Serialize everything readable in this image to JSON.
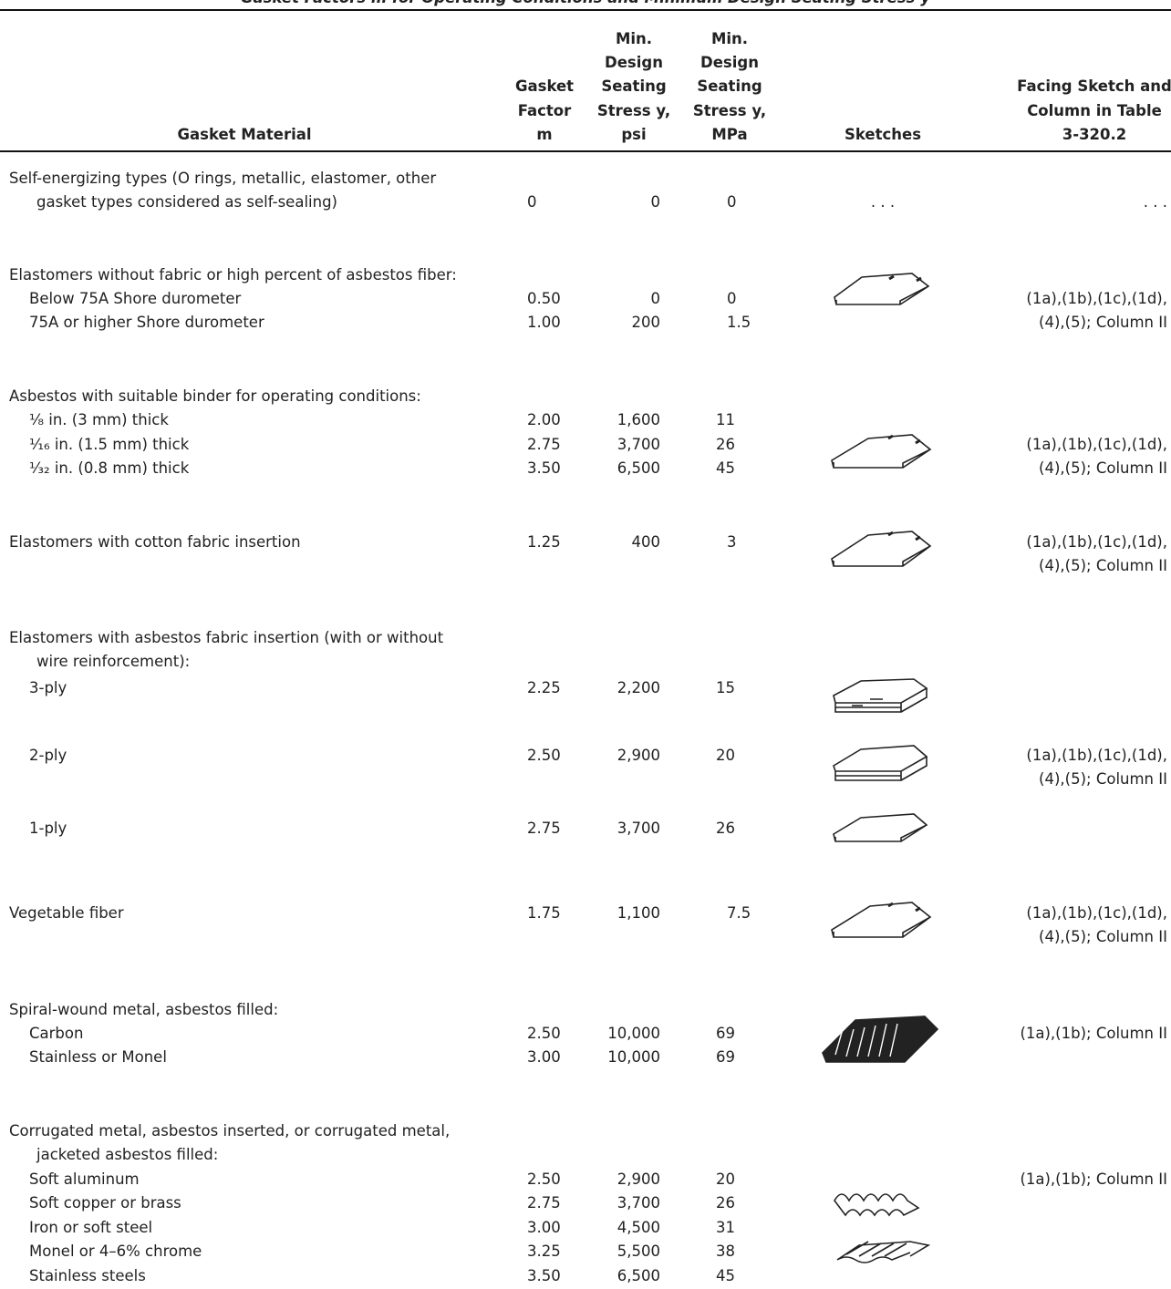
{
  "title": "Gasket Factors m for Operating Conditions and Minimum Design Seating Stress y",
  "header": {
    "material": [
      "Gasket Material"
    ],
    "m": [
      "Gasket",
      "Factor",
      "m"
    ],
    "psi": [
      "Min.",
      "Design",
      "Seating",
      "Stress y,",
      "psi"
    ],
    "mpa": [
      "Min.",
      "Design",
      "Seating",
      "Stress y,",
      "MPa"
    ],
    "sketches": [
      "Sketches"
    ],
    "facing": [
      "Facing Sketch and",
      "Column in Table",
      "3-320.2"
    ]
  },
  "groups": [
    {
      "heading": [
        "Self-energizing types (O rings, metallic, elastomer, other",
        "gasket types considered as self-sealing)"
      ],
      "rows": [
        {
          "m": "0",
          "psi": "0",
          "mpa": "0"
        }
      ],
      "sketches": ". . .",
      "facing": [
        ". . ."
      ]
    },
    {
      "heading": [
        "Elastomers without fabric or high percent of asbestos fiber:"
      ],
      "rows": [
        {
          "material": "Below 75A Shore durometer",
          "m": "0.50",
          "psi": "0",
          "mpa": "0"
        },
        {
          "material": "75A or higher Shore durometer",
          "m": "1.00",
          "psi": "200",
          "mpa": "1.5"
        }
      ],
      "facing": [
        "(1a),(1b),(1c),(1d),",
        "(4),(5); Column II"
      ]
    },
    {
      "heading": [
        "Asbestos with suitable binder for operating conditions:"
      ],
      "rows": [
        {
          "material": "¹⁄₈ in. (3 mm) thick",
          "m": "2.00",
          "psi": "1,600",
          "mpa": "11"
        },
        {
          "material": "¹⁄₁₆ in. (1.5 mm) thick",
          "m": "2.75",
          "psi": "3,700",
          "mpa": "26"
        },
        {
          "material": "¹⁄₃₂ in. (0.8 mm) thick",
          "m": "3.50",
          "psi": "6,500",
          "mpa": "45"
        }
      ],
      "facing": [
        "(1a),(1b),(1c),(1d),",
        "(4),(5); Column II"
      ]
    },
    {
      "rows": [
        {
          "material": "Elastomers with cotton fabric insertion",
          "m": "1.25",
          "psi": "400",
          "mpa": "3"
        }
      ],
      "facing": [
        "(1a),(1b),(1c),(1d),",
        "(4),(5); Column II"
      ]
    },
    {
      "heading": [
        "Elastomers with asbestos fabric insertion (with or without",
        "wire reinforcement):"
      ],
      "rows": [
        {
          "material": "3-ply",
          "m": "2.25",
          "psi": "2,200",
          "mpa": "15"
        },
        {
          "material": "2-ply",
          "m": "2.50",
          "psi": "2,900",
          "mpa": "20"
        },
        {
          "material": "1-ply",
          "m": "2.75",
          "psi": "3,700",
          "mpa": "26"
        }
      ],
      "facing": [
        "(1a),(1b),(1c),(1d),",
        "(4),(5); Column II"
      ]
    },
    {
      "rows": [
        {
          "material": "Vegetable fiber",
          "m": "1.75",
          "psi": "1,100",
          "mpa": "7.5"
        }
      ],
      "facing": [
        "(1a),(1b),(1c),(1d),",
        "(4),(5); Column II"
      ]
    },
    {
      "heading": [
        "Spiral-wound metal, asbestos filled:"
      ],
      "rows": [
        {
          "material": "Carbon",
          "m": "2.50",
          "psi": "10,000",
          "mpa": "69"
        },
        {
          "material": "Stainless or Monel",
          "m": "3.00",
          "psi": "10,000",
          "mpa": "69"
        }
      ],
      "facing": [
        "(1a),(1b); Column II"
      ]
    },
    {
      "heading": [
        "Corrugated metal, asbestos inserted, or corrugated metal,",
        "jacketed asbestos filled:"
      ],
      "rows": [
        {
          "material": "Soft aluminum",
          "m": "2.50",
          "psi": "2,900",
          "mpa": "20"
        },
        {
          "material": "Soft copper or brass",
          "m": "2.75",
          "psi": "3,700",
          "mpa": "26"
        },
        {
          "material": "Iron or soft steel",
          "m": "3.00",
          "psi": "4,500",
          "mpa": "31"
        },
        {
          "material": "Monel or 4–6% chrome",
          "m": "3.25",
          "psi": "5,500",
          "mpa": "38"
        },
        {
          "material": "Stainless steels",
          "m": "3.50",
          "psi": "6,500",
          "mpa": "45"
        }
      ],
      "facing": [
        "(1a),(1b); Column II"
      ]
    }
  ]
}
